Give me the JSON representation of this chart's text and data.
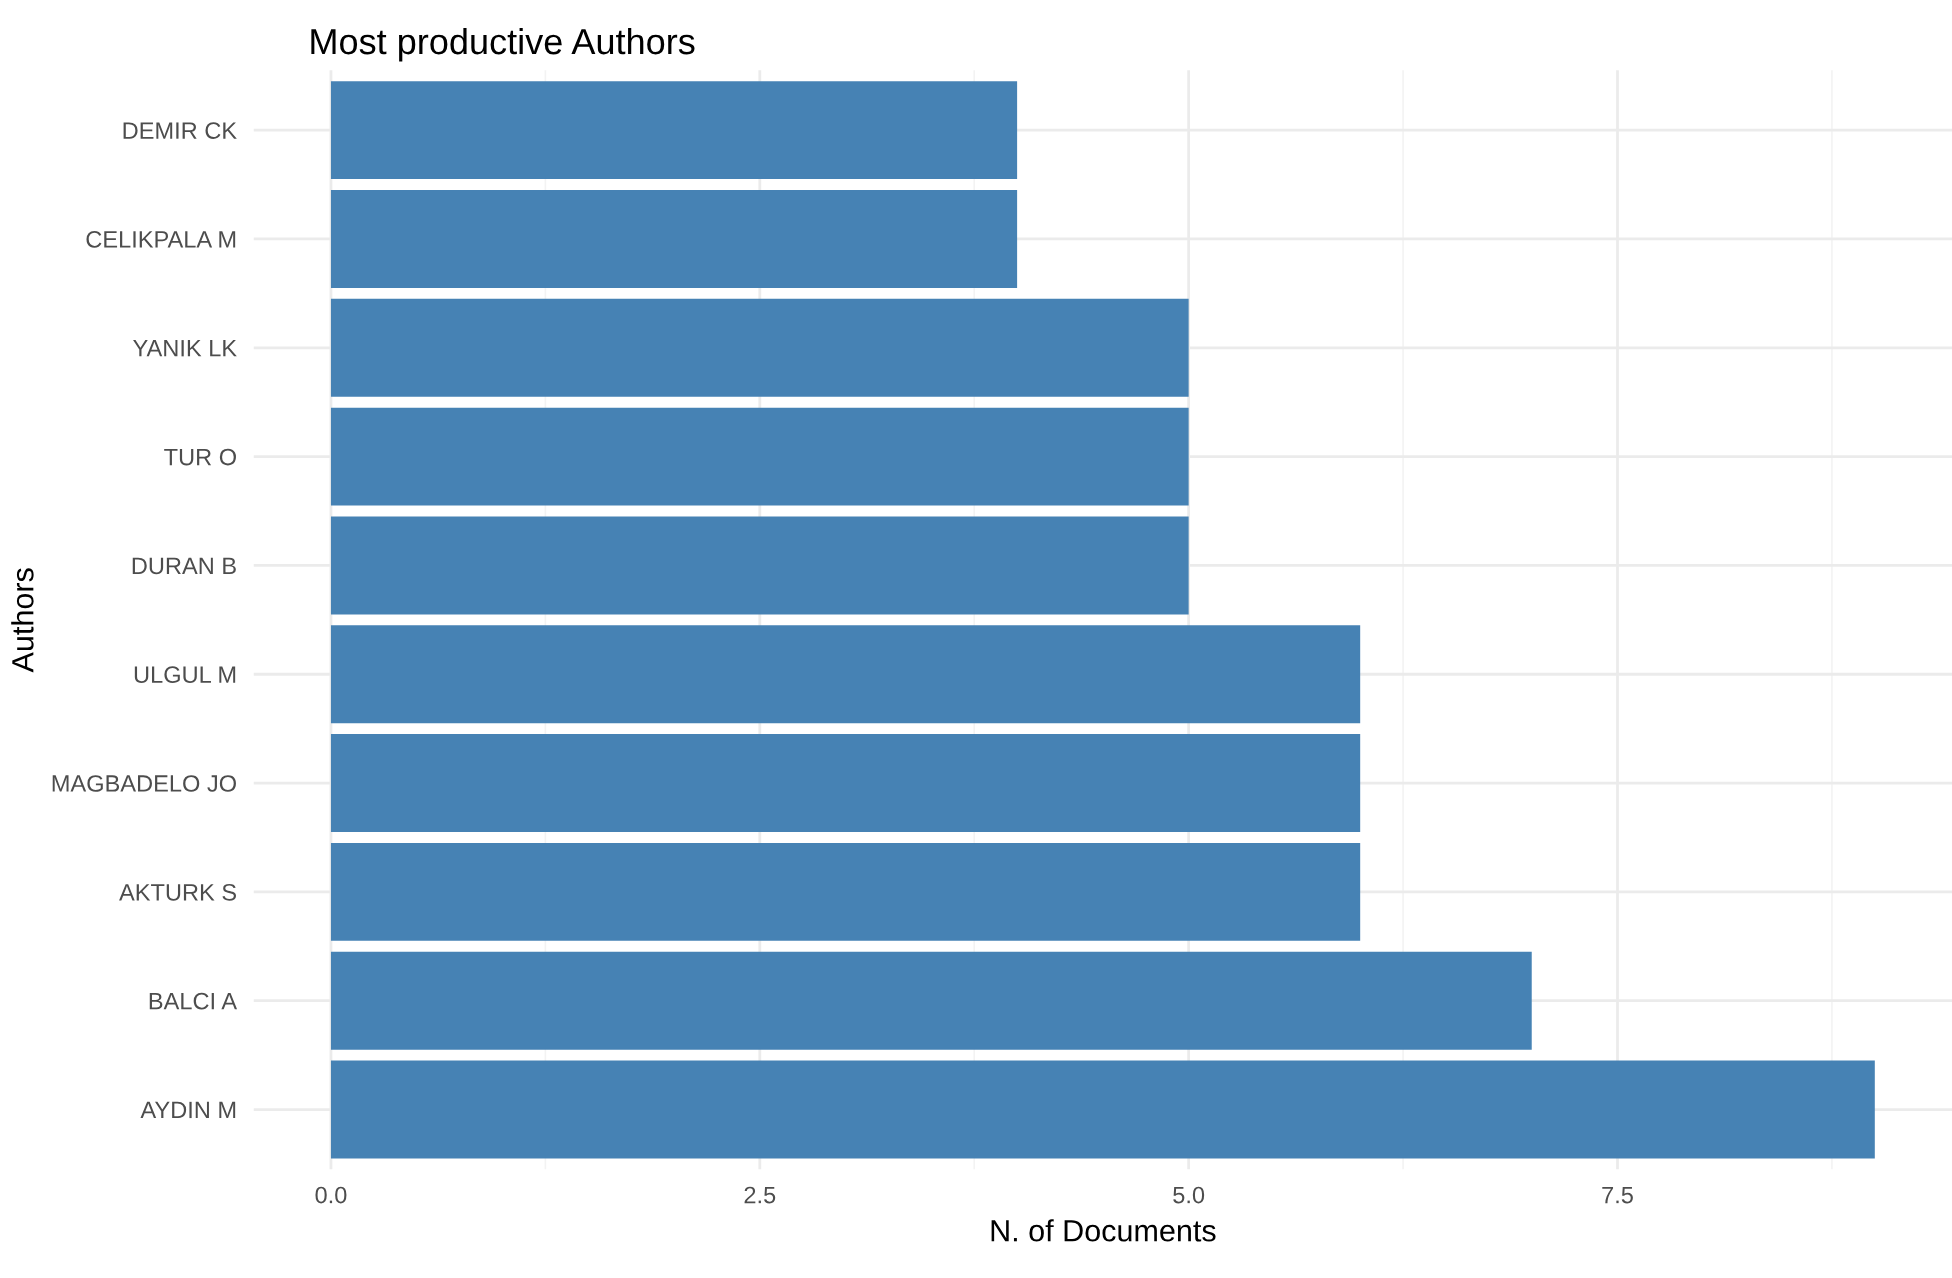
{
  "chart_data": {
    "type": "bar",
    "orientation": "horizontal",
    "title": "Most productive Authors",
    "xlabel": "N. of Documents",
    "ylabel": "Authors",
    "categories": [
      "DEMIR CK",
      "CELIKPALA M",
      "YANIK LK",
      "TUR O",
      "DURAN B",
      "ULGUL M",
      "MAGBADELO JO",
      "AKTURK S",
      "BALCI A",
      "AYDIN M"
    ],
    "values": [
      4,
      4,
      5,
      5,
      5,
      6,
      6,
      6,
      7,
      9
    ],
    "color": "#4682b4",
    "xlim": [
      -0.45,
      9.45
    ],
    "xticks": [
      {
        "value": 0,
        "label": "0.0"
      },
      2.5,
      {
        "value": 5,
        "label": "5.0"
      },
      7.5
    ],
    "grid": true,
    "legend": false
  }
}
